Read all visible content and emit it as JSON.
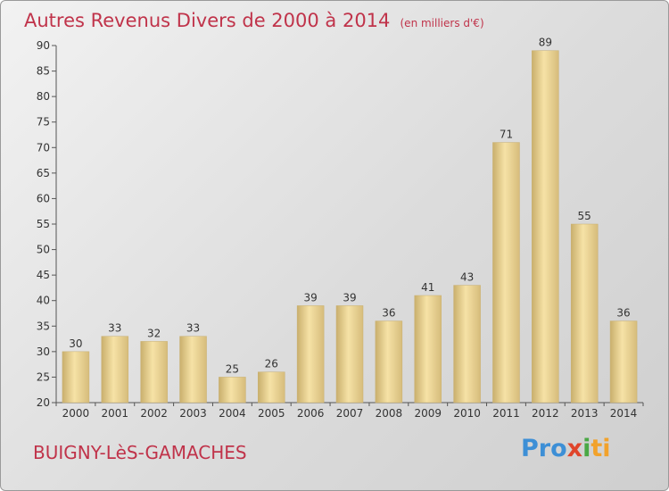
{
  "header": {
    "title": "Autres Revenus Divers de 2000 à 2014",
    "subtitle": "(en milliers d'€)"
  },
  "footer": {
    "commune": "BUIGNY-LèS-GAMACHES",
    "logo_parts": [
      "Pro",
      "x",
      "i",
      "ti"
    ]
  },
  "colors": {
    "accent": "#c0334a",
    "bar_light": "#f5dea0",
    "bar_dark": "#c8ae6c"
  },
  "chart_data": {
    "type": "bar",
    "title": "Autres Revenus Divers de 2000 à 2014",
    "subtitle": "(en milliers d'€)",
    "xlabel": "",
    "ylabel": "",
    "categories": [
      "2000",
      "2001",
      "2002",
      "2003",
      "2004",
      "2005",
      "2006",
      "2007",
      "2008",
      "2009",
      "2010",
      "2011",
      "2012",
      "2013",
      "2014"
    ],
    "values": [
      30,
      33,
      32,
      33,
      25,
      26,
      39,
      39,
      36,
      41,
      43,
      71,
      89,
      55,
      36
    ],
    "ylim": [
      20,
      90
    ],
    "yticks": [
      20,
      25,
      30,
      35,
      40,
      45,
      50,
      55,
      60,
      65,
      70,
      75,
      80,
      85,
      90
    ],
    "grid": false,
    "legend": "none"
  }
}
